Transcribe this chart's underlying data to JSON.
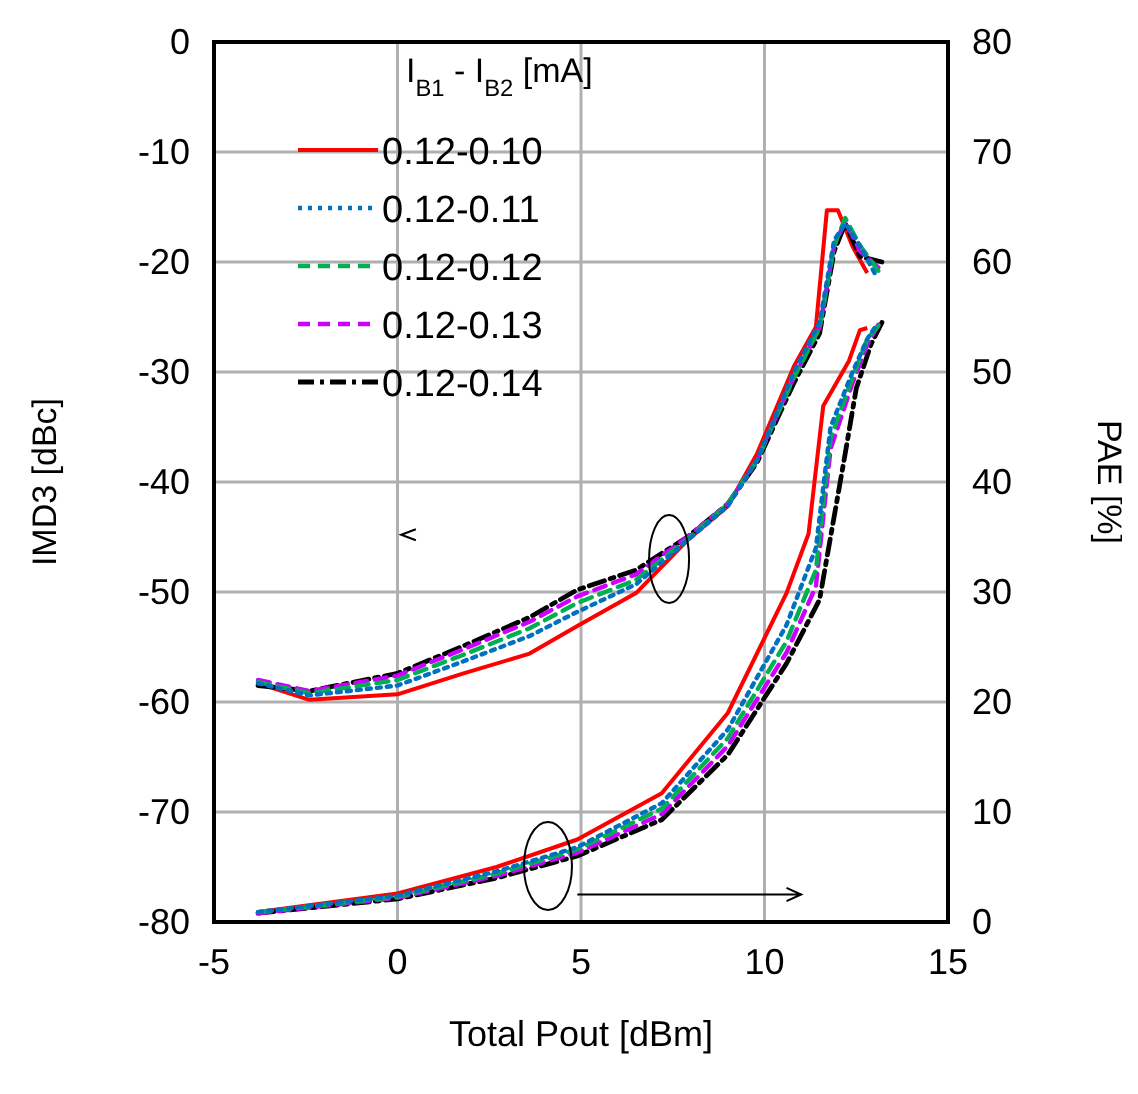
{
  "chart_data": {
    "type": "line",
    "xlabel": "Total Pout [dBm]",
    "ylabel": "IMD3 [dBc]",
    "y2label": "PAE [%]",
    "legend_title": "I$_{B1}$ - I$_{B2}$ [mA]",
    "xlim": [
      -5,
      15
    ],
    "xticks": [
      -5,
      0,
      5,
      10,
      15
    ],
    "ylim": [
      -80,
      0
    ],
    "yticks": [
      -80,
      -70,
      -60,
      -50,
      -40,
      -30,
      -20,
      -10,
      0
    ],
    "y2lim": [
      0,
      80
    ],
    "y2ticks": [
      0,
      10,
      20,
      30,
      40,
      50,
      60,
      70,
      80
    ],
    "grid": true,
    "legend": "top left",
    "series": [
      {
        "name": "0.12-0.10",
        "color": "#ff0000",
        "line_style": "solid",
        "x": [
          -3.8,
          -2.4,
          0,
          1.8,
          3.6,
          4.9,
          6.5,
          7.9,
          9,
          9.8,
          10.8,
          11.4,
          11.7,
          12,
          12.4,
          12.8
        ],
        "values": [
          -58.3,
          -59.8,
          -59.3,
          -57.4,
          -55.6,
          -53.1,
          -50.1,
          -45.3,
          -42.2,
          -37.4,
          -29.5,
          -25.9,
          -15.3,
          -15.3,
          -18.6,
          -21
        ]
      },
      {
        "name": "0.12-0.11",
        "color": "#0070c0",
        "line_style": "dotted",
        "x": [
          -3.8,
          -2.4,
          0,
          1.8,
          3.6,
          4.9,
          6.5,
          7.9,
          9,
          9.8,
          10.8,
          11.5,
          11.9,
          12.2,
          12.6,
          13.0
        ],
        "values": [
          -58.3,
          -59.4,
          -58.5,
          -56.3,
          -54,
          -51.8,
          -49.3,
          -45.3,
          -42.2,
          -38,
          -30,
          -25.5,
          -18,
          -16.5,
          -18.5,
          -21
        ]
      },
      {
        "name": "0.12-0.12",
        "color": "#00b050",
        "line_style": "dashed",
        "x": [
          -3.8,
          -2.4,
          0,
          1.8,
          3.6,
          4.9,
          6.5,
          7.9,
          9,
          9.8,
          10.8,
          11.5,
          11.9,
          12.2,
          12.6,
          13.1
        ],
        "values": [
          -58.2,
          -59.2,
          -58,
          -55.7,
          -53.3,
          -51,
          -48.9,
          -45.2,
          -42,
          -38,
          -30.5,
          -26,
          -18.5,
          -16,
          -18.5,
          -20.8
        ]
      },
      {
        "name": "0.12-0.13",
        "color": "#cc00ff",
        "line_style": "dashed",
        "x": [
          -3.8,
          -2.4,
          0,
          1.8,
          3.6,
          4.9,
          6.5,
          7.9,
          9,
          9.8,
          10.8,
          11.5,
          11.9,
          12.2,
          12.6,
          13.1
        ],
        "values": [
          -58,
          -59,
          -57.6,
          -55.2,
          -52.7,
          -50.4,
          -48.4,
          -45,
          -42,
          -38,
          -30.5,
          -26,
          -18.5,
          -16.3,
          -19,
          -20.5
        ]
      },
      {
        "name": "0.12-0.14",
        "color": "#000000",
        "line_style": "dashdot",
        "x": [
          -3.8,
          -2.4,
          0,
          1.8,
          3.6,
          4.9,
          6.5,
          7.9,
          9,
          9.8,
          10.8,
          11.5,
          11.9,
          12.2,
          12.6,
          13.2
        ],
        "values": [
          -58.5,
          -59,
          -57.4,
          -54.9,
          -52.3,
          -49.8,
          -48,
          -45,
          -42,
          -38.2,
          -31,
          -26.5,
          -19,
          -16.5,
          -19.5,
          -20
        ]
      },
      {
        "axis": "y2",
        "color": "#ff0000",
        "line_style": "solid",
        "x": [
          -3.8,
          0,
          2.7,
          4.9,
          7.2,
          9,
          10.6,
          11.2,
          11.6,
          12.3,
          12.6,
          12.8
        ],
        "values": [
          0.9,
          2.6,
          5,
          7.5,
          11.7,
          19,
          29.9,
          35.3,
          46.9,
          51,
          53.8,
          54
        ]
      },
      {
        "axis": "y2",
        "color": "#0070c0",
        "line_style": "dotted",
        "x": [
          -3.8,
          0,
          2.7,
          4.9,
          7.2,
          9,
          10.6,
          11.4,
          11.8,
          12.4,
          12.8,
          13.0
        ],
        "values": [
          0.9,
          2.4,
          4.6,
          6.8,
          10.8,
          17.5,
          27,
          34,
          45,
          50,
          53,
          54
        ]
      },
      {
        "axis": "y2",
        "color": "#00b050",
        "line_style": "dashed",
        "x": [
          -3.8,
          0,
          2.7,
          4.9,
          7.2,
          9,
          10.6,
          11.4,
          11.8,
          12.4,
          12.8,
          13.1
        ],
        "values": [
          0.9,
          2.3,
          4.4,
          6.6,
          10.3,
          16.7,
          25.5,
          32,
          44,
          49.5,
          53,
          54.2
        ]
      },
      {
        "axis": "y2",
        "color": "#cc00ff",
        "line_style": "dashed",
        "x": [
          -3.8,
          0,
          2.7,
          4.9,
          7.2,
          9,
          10.6,
          11.4,
          11.8,
          12.4,
          12.8,
          13.1
        ],
        "values": [
          0.8,
          2.2,
          4.2,
          6.3,
          9.8,
          16,
          24.5,
          30.5,
          43,
          49,
          52.5,
          54.3
        ]
      },
      {
        "axis": "y2",
        "color": "#000000",
        "line_style": "dashdot",
        "x": [
          -3.8,
          0,
          2.7,
          4.9,
          7.2,
          9,
          10.6,
          11.5,
          12.2,
          12.5,
          12.9,
          13.2
        ],
        "values": [
          0.8,
          2.1,
          4,
          6,
          9.3,
          15.2,
          23.5,
          29.3,
          42.6,
          48.5,
          52.5,
          54.5
        ]
      }
    ]
  }
}
